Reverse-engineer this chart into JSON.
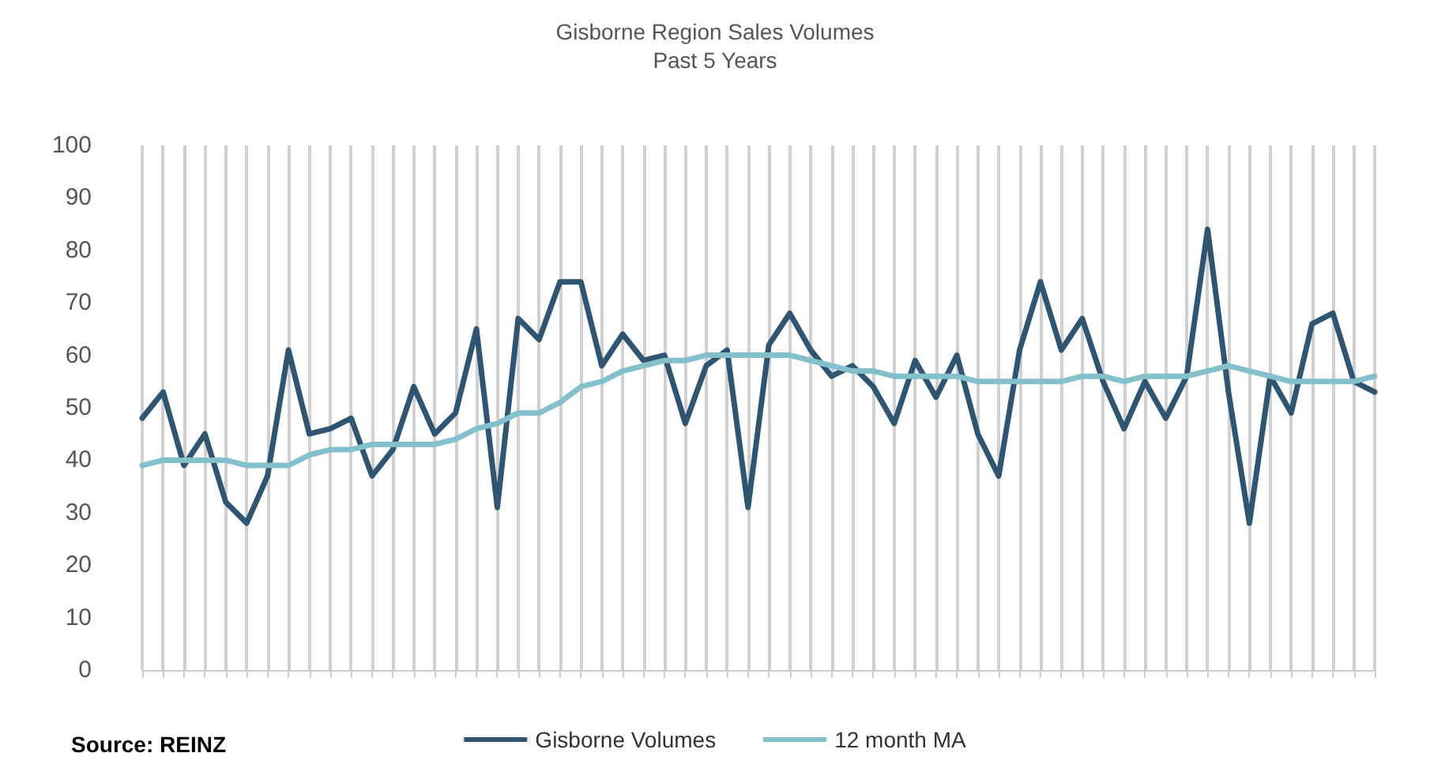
{
  "chart_data": {
    "type": "line",
    "title": "Gisborne Region Sales Volumes",
    "subtitle": "Past 5 Years",
    "annotations": [
      "Source: REINZ"
    ],
    "categories": [
      null,
      null,
      null,
      null,
      null,
      null,
      null,
      null,
      null,
      null,
      null,
      null,
      null,
      null,
      null,
      null,
      null,
      null,
      null,
      null,
      null,
      null,
      null,
      null,
      null,
      null,
      null,
      null,
      null,
      null,
      null,
      null,
      null,
      null,
      null,
      null,
      null,
      null,
      null,
      null,
      null,
      null,
      null,
      null,
      null,
      null,
      null,
      null,
      null,
      null,
      null,
      null,
      null,
      null,
      null,
      null,
      null,
      null,
      null,
      null
    ],
    "series": [
      {
        "name": "Gisborne Volumes",
        "color": "#2e5572",
        "values": [
          48,
          53,
          39,
          45,
          32,
          28,
          37,
          61,
          45,
          46,
          48,
          37,
          42,
          54,
          45,
          49,
          65,
          31,
          67,
          63,
          74,
          74,
          58,
          64,
          59,
          60,
          47,
          58,
          61,
          31,
          62,
          68,
          61,
          56,
          58,
          54,
          47,
          59,
          52,
          60,
          45,
          37,
          61,
          74,
          61,
          67,
          55,
          46,
          55,
          48,
          56,
          84,
          53,
          28,
          56,
          49,
          66,
          68,
          55,
          53
        ]
      },
      {
        "name": "12 month MA",
        "color": "#82c0cc",
        "values": [
          39,
          40,
          40,
          40,
          40,
          39,
          39,
          39,
          41,
          42,
          42,
          43,
          43,
          43,
          43,
          44,
          46,
          47,
          49,
          49,
          51,
          54,
          55,
          57,
          58,
          59,
          59,
          60,
          60,
          60,
          60,
          60,
          59,
          58,
          57,
          57,
          56,
          56,
          56,
          56,
          55,
          55,
          55,
          55,
          55,
          56,
          56,
          55,
          56,
          56,
          56,
          57,
          58,
          57,
          56,
          55,
          55,
          55,
          55,
          56
        ]
      }
    ],
    "ylim": [
      0,
      100
    ],
    "yticks": [
      0,
      10,
      20,
      30,
      40,
      50,
      60,
      70,
      80,
      90,
      100
    ],
    "grid": "x",
    "legend": "bottom",
    "marker": "none",
    "line_style": "solid"
  }
}
